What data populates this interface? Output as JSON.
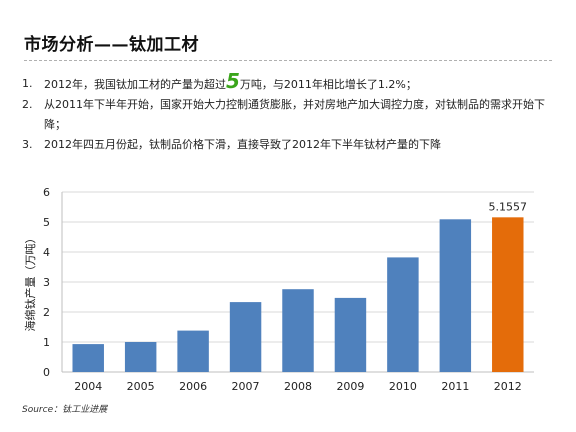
{
  "page": {
    "title": "市场分析——钛加工材",
    "points": [
      {
        "num": "1.",
        "pre": "2012年，我国钛加工材的产量为超过",
        "highlight": "5",
        "post": "万吨，与2011年相比增长了1.2%；"
      },
      {
        "num": "2.",
        "pre": "从2011年下半年开始，国家开始大力控制通货膨胀，并对房地产加大调控力度，对钛制品的需求开始下降；",
        "highlight": "",
        "post": ""
      },
      {
        "num": "3.",
        "pre": "2012年四五月份起，钛制品价格下滑，直接导致了2012年下半年钛材产量的下降",
        "highlight": "",
        "post": ""
      }
    ],
    "source": "Source：钛工业进展"
  },
  "chart_data": {
    "type": "bar",
    "categories": [
      "2004",
      "2005",
      "2006",
      "2007",
      "2008",
      "2009",
      "2010",
      "2011",
      "2012"
    ],
    "values": [
      0.93,
      1.0,
      1.38,
      2.33,
      2.76,
      2.47,
      3.82,
      5.09,
      5.1557
    ],
    "ylabel": "海绵钛产量（万吨）",
    "ylim": [
      0,
      6
    ],
    "yticks": [
      0,
      1,
      2,
      3,
      4,
      5,
      6
    ],
    "grid": true,
    "data_labels": [
      {
        "index": 8,
        "text": "5.1557"
      }
    ],
    "colors": {
      "default": "#4f81bd",
      "highlight": "#e46c0a",
      "highlight_index": 8
    }
  }
}
